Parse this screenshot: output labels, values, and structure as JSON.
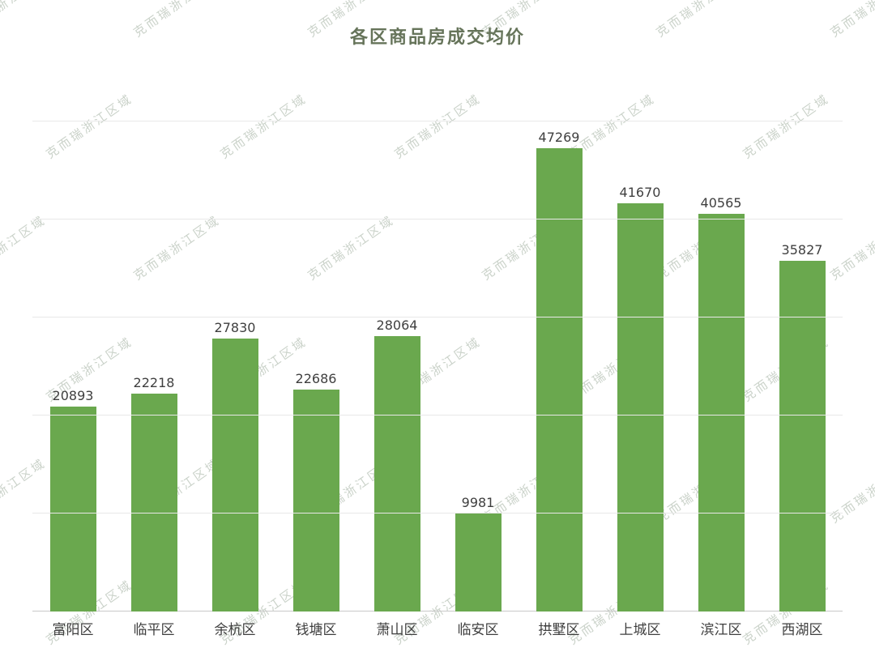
{
  "watermark": {
    "text": "克而瑞浙江区域"
  },
  "chart_data": {
    "type": "bar",
    "title": "各区商品房成交均价",
    "categories": [
      "富阳区",
      "临平区",
      "余杭区",
      "钱塘区",
      "萧山区",
      "临安区",
      "拱墅区",
      "上城区",
      "滨江区",
      "西湖区"
    ],
    "values": [
      20893,
      22218,
      27830,
      22686,
      28064,
      9981,
      47269,
      41670,
      40565,
      35827
    ],
    "xlabel": "",
    "ylabel": "",
    "ylim": [
      0,
      50000
    ],
    "grid_interval": 10000,
    "grid": true,
    "legend": "none",
    "bar_color": "#6aa84e",
    "title_color": "#66745a",
    "value_label_color": "#3f3f3f",
    "axis_line_color": "#c9c9c9",
    "gridline_color": "#e8e8e8"
  }
}
